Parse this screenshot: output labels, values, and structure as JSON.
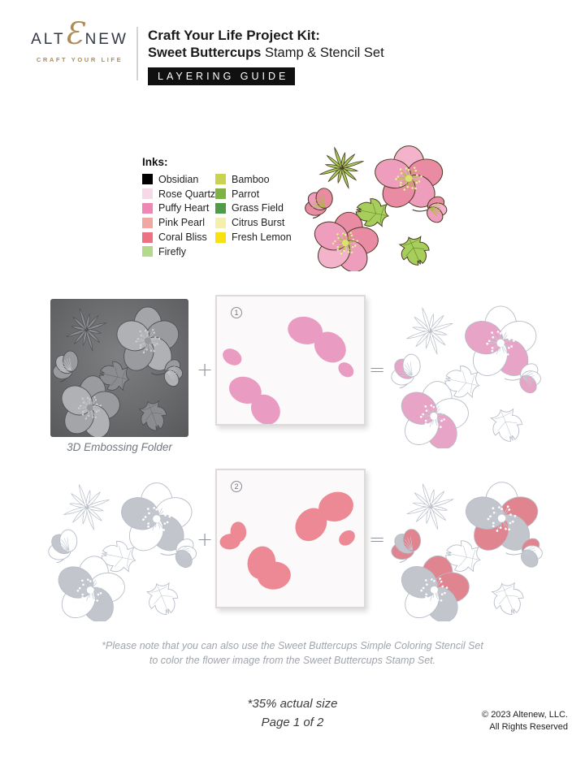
{
  "header": {
    "logo": {
      "word_pre": "ALT",
      "logo_e": "Ɛ",
      "word_post": "NEW",
      "tagline": "CRAFT YOUR LIFE",
      "gold": "#b08c55",
      "dark": "#333a45"
    },
    "title_line1": "Craft Your Life Project Kit:",
    "title_line2_bold": "Sweet Buttercups",
    "title_line2_rest": " Stamp & Stencil Set",
    "badge": "LAYERING GUIDE"
  },
  "inks": {
    "label": "Inks:",
    "col1": [
      {
        "name": "Obsidian",
        "color": "#000000"
      },
      {
        "name": "Rose Quartz",
        "color": "#f6d9e7"
      },
      {
        "name": "Puffy Heart",
        "color": "#ee87b4"
      },
      {
        "name": "Pink Pearl",
        "color": "#efa8a2"
      },
      {
        "name": "Coral Bliss",
        "color": "#ec7183"
      },
      {
        "name": "Firefly",
        "color": "#b4d88c"
      }
    ],
    "col2": [
      {
        "name": "Bamboo",
        "color": "#c9d34f"
      },
      {
        "name": "Parrot",
        "color": "#7fb244"
      },
      {
        "name": "Grass Field",
        "color": "#4f9b4b"
      },
      {
        "name": "Citrus Burst",
        "color": "#f4efad"
      },
      {
        "name": "Fresh Lemon",
        "color": "#f6e111"
      }
    ]
  },
  "diagram": {
    "embossing_label": "3D Embossing Folder",
    "plus": "+",
    "equals": "=",
    "step1_num": "1",
    "step2_num": "2"
  },
  "footer": {
    "note_line1": "*Please note that you can also use the Sweet Buttercups Simple Coloring Stencil Set",
    "note_line2": "to color the flower image from the Sweet Buttercups Stamp Set.",
    "size_note": "*35% actual size",
    "page": "Page 1 of 2",
    "copyright1": "© 2023 Altenew, LLC.",
    "copyright2": "All Rights Reserved"
  },
  "artwork": {
    "sets": {
      "set1": [
        "A4",
        "A2",
        "B4",
        "B2",
        "C1",
        "D2"
      ],
      "set2": [
        "A1",
        "A3",
        "B0",
        "B1",
        "C0",
        "C2",
        "D0"
      ]
    },
    "palettes": {
      "colored": {
        "line": "#4a3a23",
        "lw": 1.1,
        "leaf": "#a7ce5b",
        "vein": "#619031",
        "petal": "#f3b3ca",
        "center": "#dce26e",
        "stamen": "#aaba3e",
        "stamenDot": "#edf29c",
        "colorSets": [
          {
            "set": "set1",
            "fill": "#ef9dbd"
          },
          {
            "set": "set2",
            "fill": "#ea8ba4"
          }
        ]
      },
      "embossed": {
        "line": "#4f5054",
        "lw": 1.0,
        "leaf": "#8b8c90",
        "vein": "#6e6f73",
        "petal": "#a4a5a9",
        "center": "#97989c",
        "stamen": "#c3c4c8",
        "stamenDot": "#cfd0d4",
        "colorSets": [
          {
            "set": "set1",
            "fill": "#b0b1b5"
          },
          {
            "set": "set2",
            "fill": "#9a9b9f"
          }
        ]
      },
      "stencil1": {
        "line": "none",
        "lw": 0.9,
        "leaf": "none",
        "vein": "none",
        "petal": "none",
        "center": "none",
        "stamen": "none",
        "stamenDot": "none",
        "colorSets": [
          {
            "set": "set1",
            "fill": "#ea9bc1"
          }
        ]
      },
      "lineart_pink": {
        "line": "#b6bcc7",
        "lw": 0.9,
        "leaf": "#ffffff",
        "vein": "#c4cad4",
        "petal": "#ffffff",
        "center": "#ffffff",
        "stamen": "#c4cad4",
        "stamenDot": "#ffffff",
        "colorSets": [
          {
            "set": "set1",
            "fill": "#e8a4c6"
          }
        ]
      },
      "lineart_gray": {
        "line": "#b6bcc7",
        "lw": 0.9,
        "leaf": "#ffffff",
        "vein": "#c4cad4",
        "petal": "#ffffff",
        "center": "#ffffff",
        "stamen": "#c4cad4",
        "stamenDot": "#ffffff",
        "colorSets": [
          {
            "set": "set1",
            "fill": "#c2c6cc"
          }
        ]
      },
      "stencil2": {
        "line": "none",
        "lw": 0.9,
        "leaf": "none",
        "vein": "none",
        "petal": "none",
        "center": "none",
        "stamen": "none",
        "stamenDot": "none",
        "colorSets": [
          {
            "set": "set2",
            "fill": "#ec8994"
          }
        ]
      },
      "lineart_final": {
        "line": "#b6bcc7",
        "lw": 0.9,
        "leaf": "#ffffff",
        "vein": "#c4cad4",
        "petal": "#ffffff",
        "center": "#ffffff",
        "stamen": "#c4cad4",
        "stamenDot": "#ffffff",
        "colorSets": [
          {
            "set": "set1",
            "fill": "#c2c6cc"
          },
          {
            "set": "set2",
            "fill": "#e0858f"
          }
        ]
      }
    }
  }
}
